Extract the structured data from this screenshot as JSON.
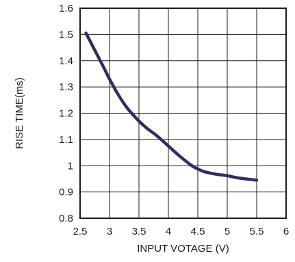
{
  "chart_data": {
    "type": "line",
    "title": "",
    "xlabel": "INPUT VOTAGE (V)",
    "ylabel": "RISE TIME(ms)",
    "xlim": [
      2.5,
      6
    ],
    "ylim": [
      0.8,
      1.6
    ],
    "x_ticks": [
      "2.5",
      "3",
      "3.5",
      "4",
      "4.5",
      "5",
      "5.5",
      "6"
    ],
    "y_ticks": [
      "0.8",
      "0.9",
      "1",
      "1.1",
      "1.2",
      "1.3",
      "1.4",
      "1.5",
      "1.6"
    ],
    "grid": true,
    "line_color": "#2e2e66",
    "series": [
      {
        "x": [
          2.6,
          2.75,
          2.9,
          3.0,
          3.15,
          3.3,
          3.5,
          3.65,
          3.8,
          4.0,
          4.2,
          4.4,
          4.5,
          4.6,
          4.8,
          5.0,
          5.2,
          5.5
        ],
        "values": [
          1.505,
          1.44,
          1.375,
          1.33,
          1.27,
          1.22,
          1.17,
          1.14,
          1.115,
          1.075,
          1.035,
          1.0,
          0.988,
          0.978,
          0.968,
          0.962,
          0.953,
          0.945
        ]
      }
    ]
  }
}
